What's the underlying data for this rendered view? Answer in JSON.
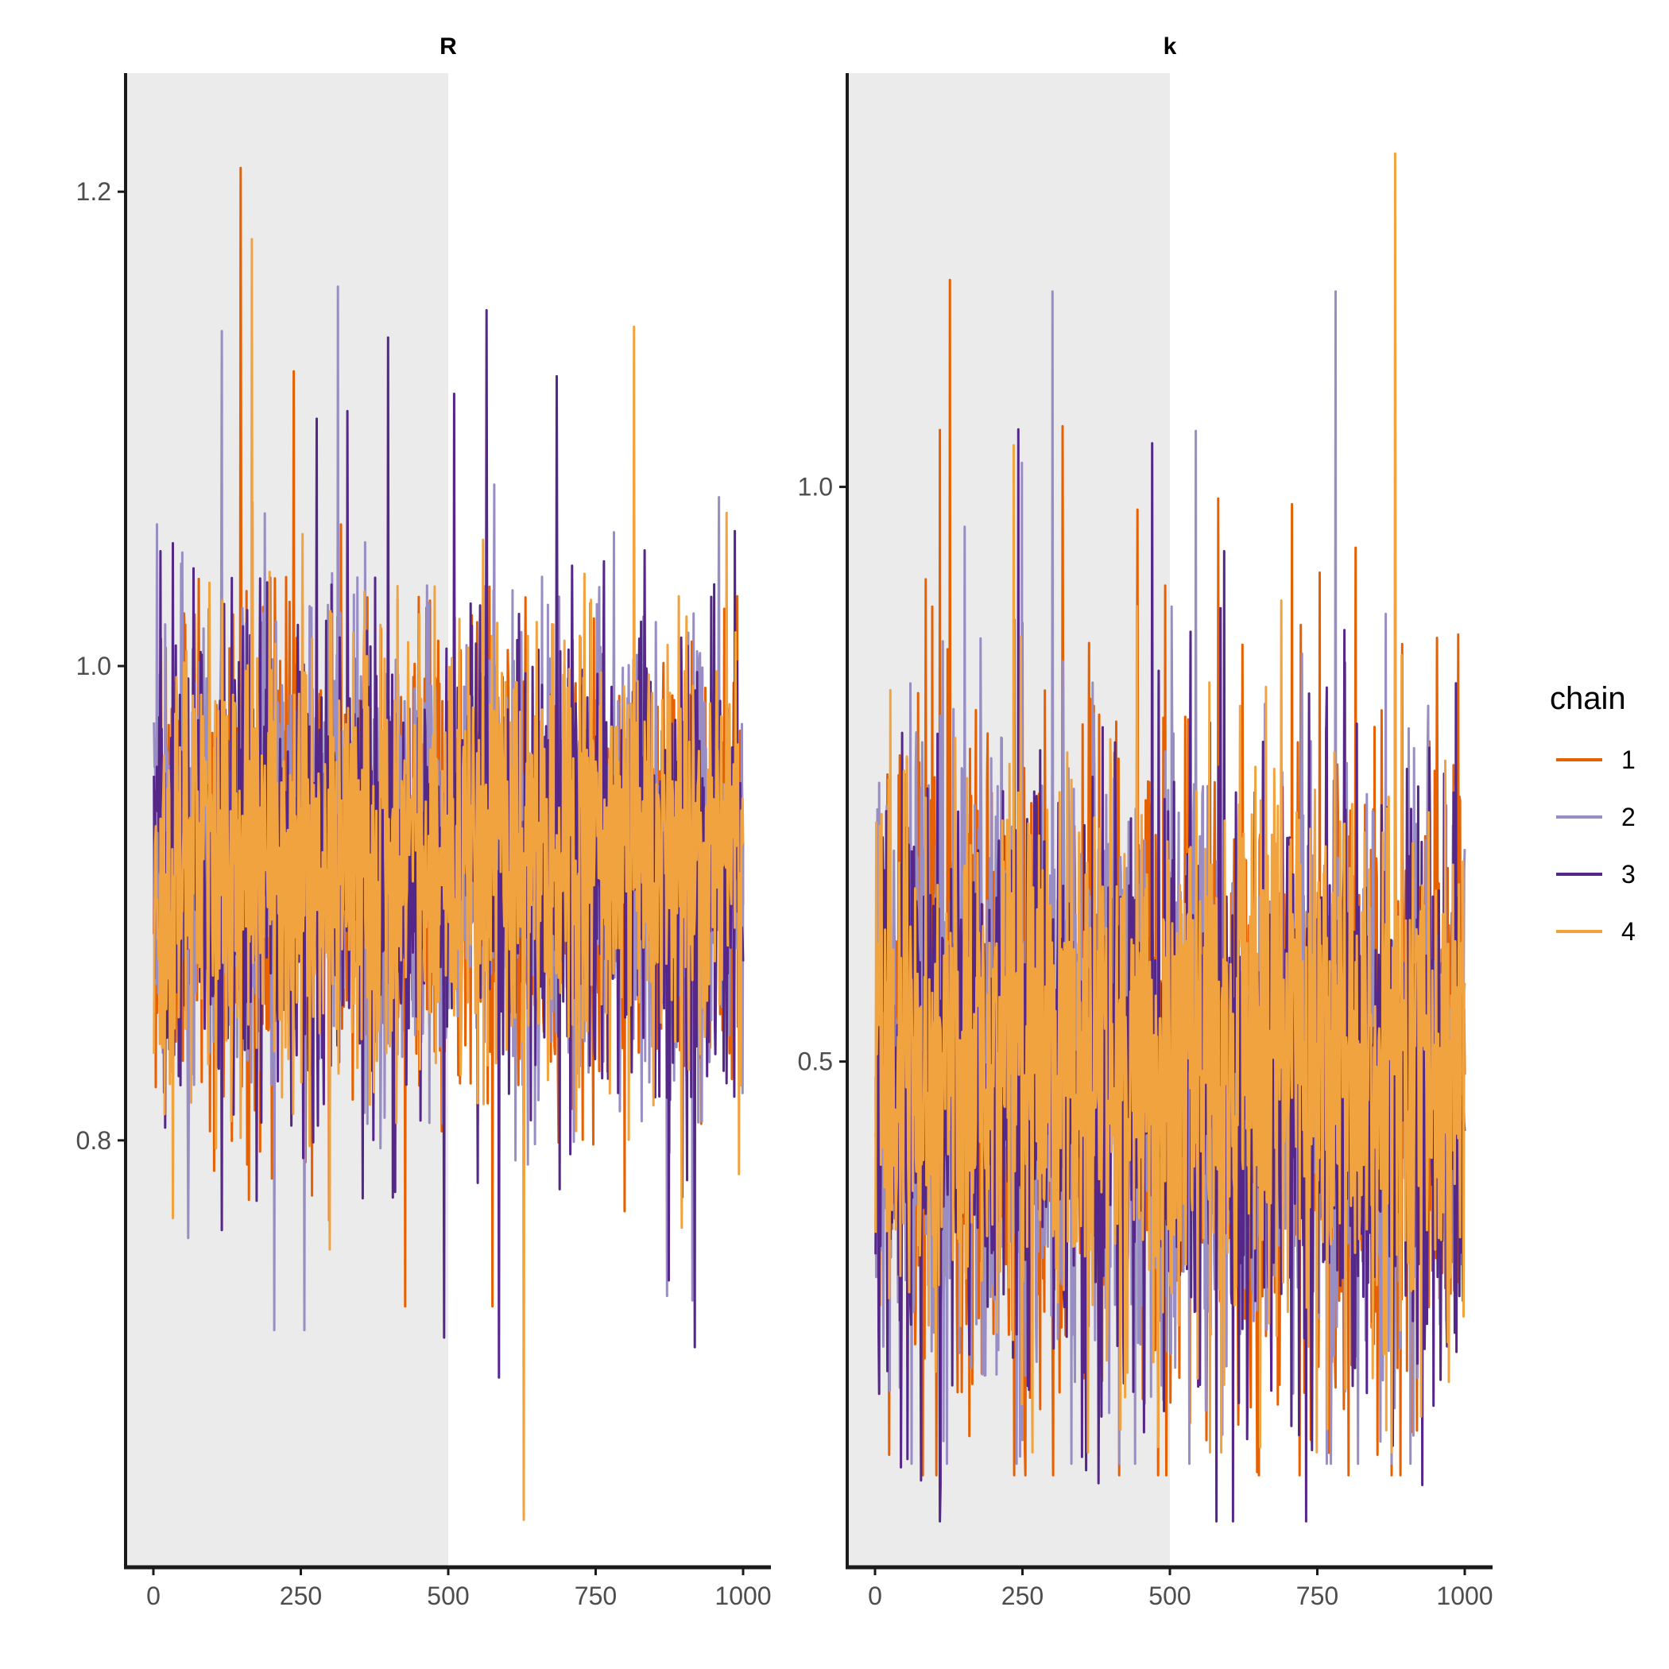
{
  "chart_data": {
    "type": "line",
    "figure_kind": "MCMC trace plot",
    "warmup_shading": {
      "from_iteration": 0,
      "to_iteration": 500,
      "color": "#ebebeb"
    },
    "legend": {
      "title": "chain",
      "placement": "right",
      "entries": [
        {
          "label": "1",
          "color": "#e66101"
        },
        {
          "label": "2",
          "color": "#998ec3"
        },
        {
          "label": "3",
          "color": "#542788"
        },
        {
          "label": "4",
          "color": "#f1a340"
        }
      ]
    },
    "panels": [
      {
        "title": "R",
        "xlim": [
          0,
          1000
        ],
        "x_ticks": [
          "0",
          "250",
          "500",
          "750",
          "1000"
        ],
        "ylim": [
          0.62,
          1.25
        ],
        "y_ticks": [
          "0.8",
          "1.0",
          "1.2"
        ],
        "iterations": 1000,
        "series": [
          {
            "name": "1",
            "center": 0.92,
            "spread": 0.05,
            "min": 0.73,
            "max": 1.21
          },
          {
            "name": "2",
            "center": 0.92,
            "spread": 0.05,
            "min": 0.72,
            "max": 1.16
          },
          {
            "name": "3",
            "center": 0.92,
            "spread": 0.05,
            "min": 0.7,
            "max": 1.15
          },
          {
            "name": "4",
            "center": 0.92,
            "spread": 0.045,
            "min": 0.64,
            "max": 1.18
          }
        ]
      },
      {
        "title": "k",
        "xlim": [
          0,
          1000
        ],
        "x_ticks": [
          "0",
          "250",
          "500",
          "750",
          "1000"
        ],
        "ylim": [
          0.06,
          1.36
        ],
        "y_ticks": [
          "0.5",
          "1.0"
        ],
        "iterations": 1000,
        "series": [
          {
            "name": "1",
            "center": 0.5,
            "spread": 0.15,
            "min": 0.14,
            "max": 1.18
          },
          {
            "name": "2",
            "center": 0.48,
            "spread": 0.14,
            "min": 0.15,
            "max": 1.17
          },
          {
            "name": "3",
            "center": 0.48,
            "spread": 0.14,
            "min": 0.1,
            "max": 1.05
          },
          {
            "name": "4",
            "center": 0.5,
            "spread": 0.12,
            "min": 0.16,
            "max": 1.29
          }
        ]
      }
    ]
  }
}
